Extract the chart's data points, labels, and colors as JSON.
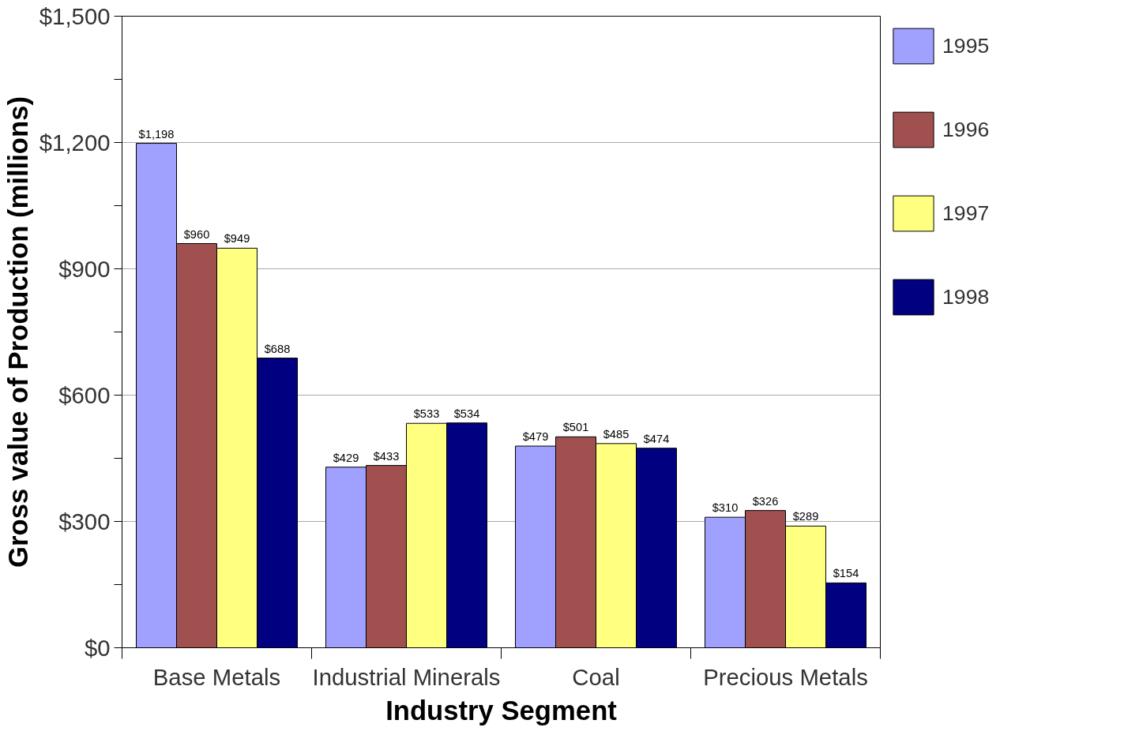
{
  "chart_data": {
    "type": "bar",
    "xlabel": "Industry Segment",
    "ylabel": "Gross value of Production (millions)",
    "categories": [
      "Base Metals",
      "Industrial Minerals",
      "Coal",
      "Precious Metals"
    ],
    "series": [
      {
        "name": "1995",
        "color": "#a0a0ff",
        "values": [
          1198,
          429,
          479,
          310
        ],
        "value_labels": [
          "$1,198",
          "$429",
          "$479",
          "$310"
        ]
      },
      {
        "name": "1996",
        "color": "#a0504f",
        "values": [
          960,
          433,
          501,
          326
        ],
        "value_labels": [
          "$960",
          "$433",
          "$501",
          "$326"
        ]
      },
      {
        "name": "1997",
        "color": "#ffff80",
        "values": [
          949,
          533,
          485,
          289
        ],
        "value_labels": [
          "$949",
          "$533",
          "$485",
          "$289"
        ]
      },
      {
        "name": "1998",
        "color": "#000080",
        "values": [
          688,
          534,
          474,
          154
        ],
        "value_labels": [
          "$688",
          "$534",
          "$474",
          "$154"
        ]
      }
    ],
    "ylim": [
      0,
      1500
    ],
    "yticks": [
      {
        "value": 0,
        "label": "$0"
      },
      {
        "value": 150,
        "label": null
      },
      {
        "value": 300,
        "label": "$300"
      },
      {
        "value": 450,
        "label": null
      },
      {
        "value": 600,
        "label": "$600"
      },
      {
        "value": 750,
        "label": null
      },
      {
        "value": 900,
        "label": "$900"
      },
      {
        "value": 1050,
        "label": null
      },
      {
        "value": 1200,
        "label": "$1,200"
      },
      {
        "value": 1350,
        "label": null
      },
      {
        "value": 1500,
        "label": "$1,500"
      }
    ],
    "grid": "y",
    "legend": "right"
  }
}
